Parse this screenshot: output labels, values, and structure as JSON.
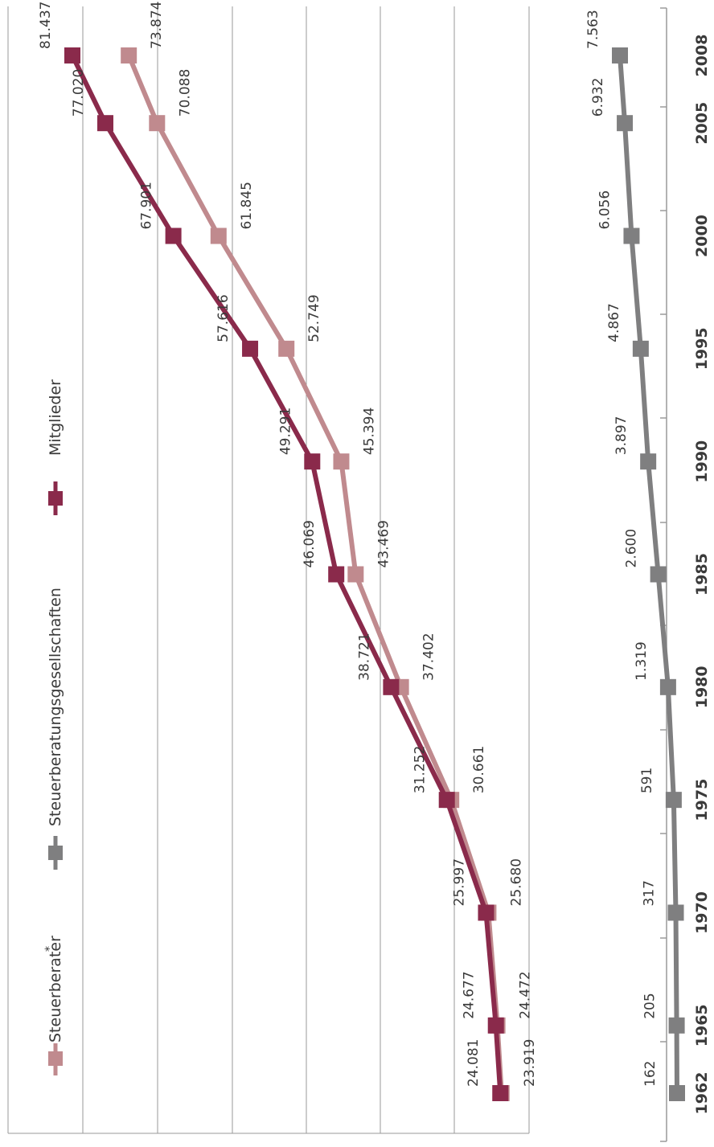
{
  "legend": {
    "steuerberater": "Steuerberater",
    "steuerberater_mark": "*",
    "gesellschaften": "Steuerberatungsgesellschaften",
    "mitglieder": "Mitglieder"
  },
  "colors": {
    "steuerberater": "#c08a8e",
    "mitglieder": "#8a2a4b",
    "gesellschaften": "#7f7f80",
    "grid": "#9a9a9a",
    "text": "#3a3a3a"
  },
  "chart_data": {
    "type": "line",
    "x": [
      "1962",
      "1965",
      "1970",
      "1975",
      "1980",
      "1985",
      "1990",
      "1995",
      "2000",
      "2005",
      "2008"
    ],
    "series": [
      {
        "name": "Steuerberater*",
        "key": "steuerberater",
        "values": [
          23919,
          24472,
          25680,
          30661,
          37402,
          43469,
          45394,
          52749,
          61845,
          70088,
          73874
        ],
        "labels": [
          "23.919",
          "24.472",
          "25.680",
          "30.661",
          "37.402",
          "43.469",
          "45.394",
          "52.749",
          "61.845",
          "70.088",
          "73.874"
        ]
      },
      {
        "name": "Mitglieder",
        "key": "mitglieder",
        "values": [
          24081,
          24677,
          25997,
          31252,
          38721,
          46069,
          49291,
          57616,
          67901,
          77020,
          81437
        ],
        "labels": [
          "24.081",
          "24.677",
          "25.997",
          "31.252",
          "38.721",
          "46.069",
          "49.291",
          "57.616",
          "67.901",
          "77.020",
          "81.437"
        ]
      },
      {
        "name": "Steuerberatungsgesellschaften",
        "key": "gesellschaften",
        "values": [
          162,
          205,
          317,
          591,
          1319,
          2600,
          3897,
          4867,
          6056,
          6932,
          7563
        ],
        "labels": [
          "162",
          "205",
          "317",
          "591",
          "1.319",
          "2.600",
          "3.897",
          "4.867",
          "6.056",
          "6.932",
          "7.563"
        ]
      }
    ],
    "grid": true
  }
}
